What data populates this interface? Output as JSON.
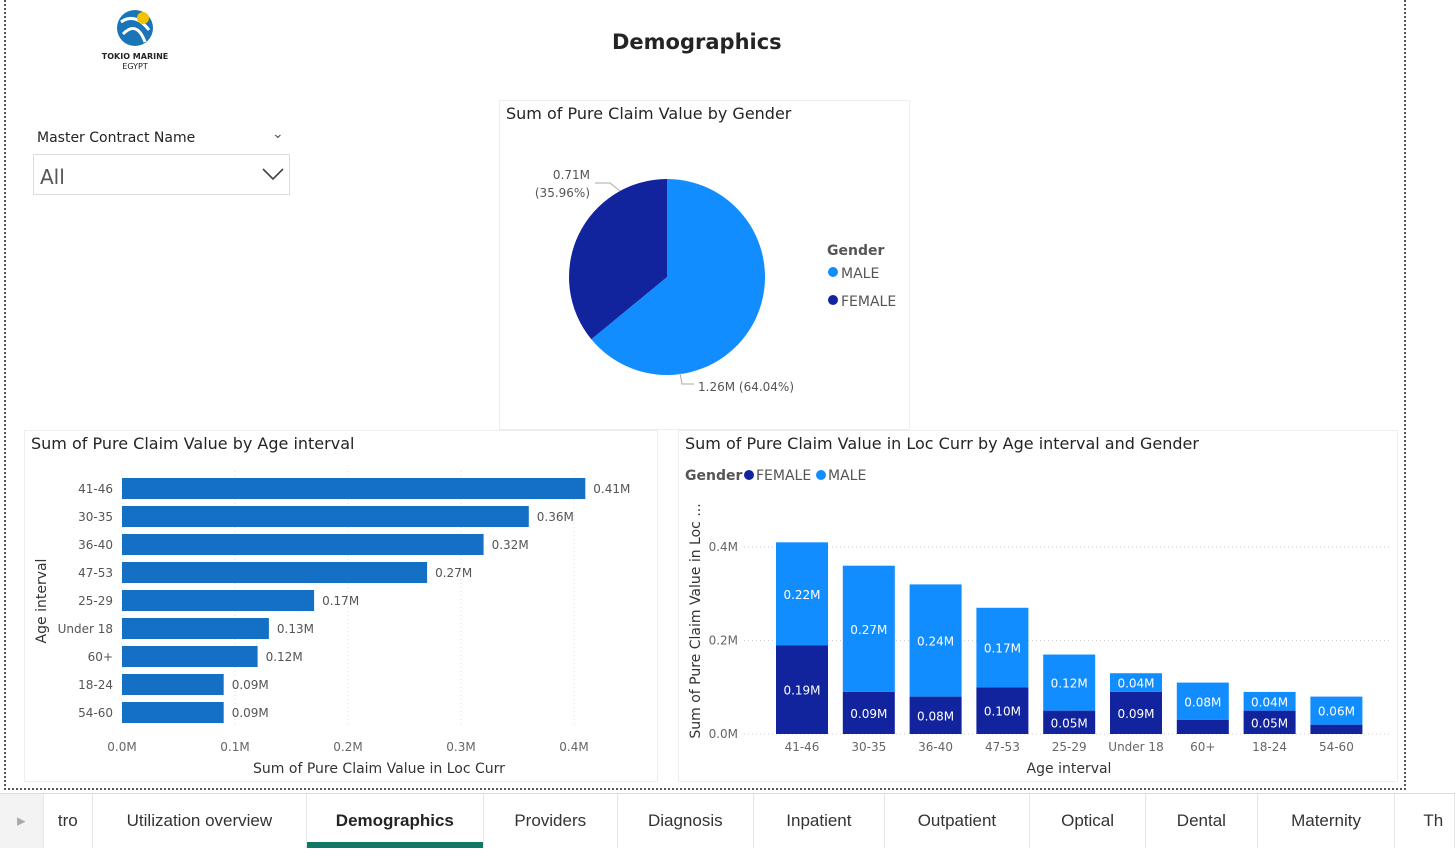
{
  "page": {
    "title": "Demographics"
  },
  "logo": {
    "text_line1": "TOKIO MARINE",
    "text_line2": "EGYPT"
  },
  "slicer": {
    "label": "Master Contract Name",
    "value": "All"
  },
  "colors": {
    "male": "#118DFF",
    "female": "#12239E",
    "bar": "#1470C4",
    "tab_accent": "#117865"
  },
  "chart_data": [
    {
      "type": "pie",
      "title": "Sum of Pure Claim Value by Gender",
      "legend_title": "Gender",
      "legend_position": "right",
      "slices": [
        {
          "name": "MALE",
          "value": 1.26,
          "label": "1.26M (64.04%)",
          "percent": 64.04
        },
        {
          "name": "FEMALE",
          "value": 0.71,
          "label_value": "0.71M",
          "label_pct": "(35.96%)",
          "percent": 35.96
        }
      ]
    },
    {
      "type": "bar",
      "orientation": "horizontal",
      "title": "Sum of Pure Claim Value by Age interval",
      "xlabel": "Sum of Pure Claim Value in Loc Curr",
      "ylabel": "Age interval",
      "categories": [
        "41-46",
        "30-35",
        "36-40",
        "47-53",
        "25-29",
        "Under 18",
        "60+",
        "18-24",
        "54-60"
      ],
      "values": [
        0.41,
        0.36,
        0.32,
        0.27,
        0.17,
        0.13,
        0.12,
        0.09,
        0.09
      ],
      "labels": [
        "0.41M",
        "0.36M",
        "0.32M",
        "0.27M",
        "0.17M",
        "0.13M",
        "0.12M",
        "0.09M",
        "0.09M"
      ],
      "xlim": [
        0,
        0.4
      ],
      "xticks": [
        "0.0M",
        "0.1M",
        "0.2M",
        "0.3M",
        "0.4M"
      ],
      "grid": true
    },
    {
      "type": "bar",
      "orientation": "vertical",
      "stacked": true,
      "title": "Sum of Pure Claim Value in Loc Curr by Age interval and Gender",
      "legend_title": "Gender",
      "legend_position": "top-left",
      "xlabel": "Age interval",
      "ylabel": "Sum of Pure Claim Value in Loc ...",
      "categories": [
        "41-46",
        "30-35",
        "36-40",
        "47-53",
        "25-29",
        "Under 18",
        "60+",
        "18-24",
        "54-60"
      ],
      "series": [
        {
          "name": "FEMALE",
          "values": [
            0.19,
            0.09,
            0.08,
            0.1,
            0.05,
            0.09,
            0.03,
            0.05,
            0.02
          ],
          "labels": [
            "0.19M",
            "0.09M",
            "0.08M",
            "0.10M",
            "0.05M",
            "0.09M",
            "",
            "0.05M",
            ""
          ]
        },
        {
          "name": "MALE",
          "values": [
            0.22,
            0.27,
            0.24,
            0.17,
            0.12,
            0.04,
            0.08,
            0.04,
            0.06
          ],
          "labels": [
            "0.22M",
            "0.27M",
            "0.24M",
            "0.17M",
            "0.12M",
            "0.04M",
            "0.08M",
            "0.04M",
            "0.06M"
          ]
        }
      ],
      "ylim": [
        0,
        0.4
      ],
      "yticks": [
        "0.0M",
        "0.2M",
        "0.4M"
      ],
      "grid": true
    }
  ],
  "tabs": [
    {
      "label": "tro"
    },
    {
      "label": "Utilization overview"
    },
    {
      "label": "Demographics",
      "active": true
    },
    {
      "label": "Providers"
    },
    {
      "label": "Diagnosis"
    },
    {
      "label": "Inpatient"
    },
    {
      "label": "Outpatient"
    },
    {
      "label": "Optical"
    },
    {
      "label": "Dental"
    },
    {
      "label": "Maternity"
    },
    {
      "label": "Th"
    }
  ]
}
